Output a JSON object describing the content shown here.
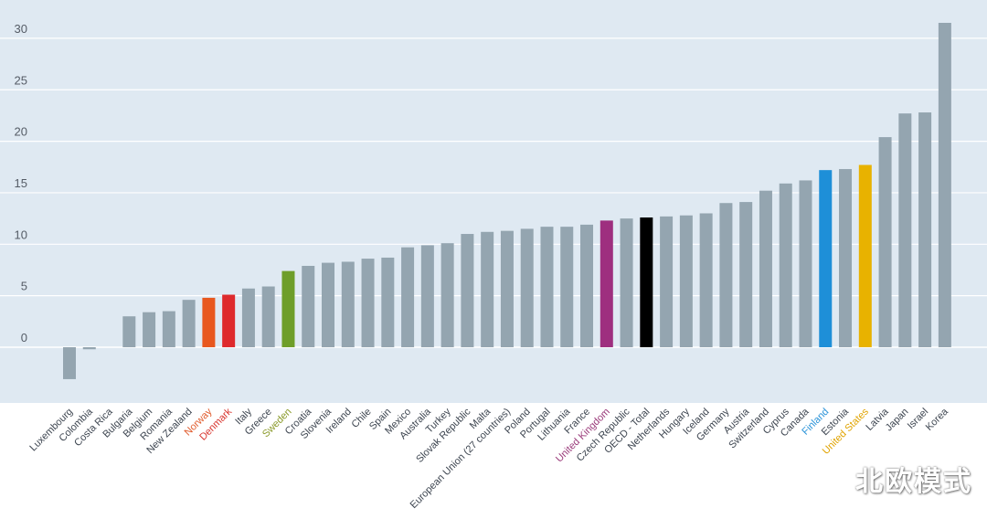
{
  "chart_data": {
    "type": "bar",
    "title": "",
    "xlabel": "",
    "ylabel": "",
    "ylim": [
      -5.5,
      33
    ],
    "yticks": [
      0,
      5,
      10,
      15,
      20,
      25,
      30
    ],
    "grid": true,
    "categories": [
      "Luxembourg",
      "Colombia",
      "Costa Rica",
      "Bulgaria",
      "Belgium",
      "Romania",
      "New Zealand",
      "Norway",
      "Denmark",
      "Italy",
      "Greece",
      "Sweden",
      "Croatia",
      "Slovenia",
      "Ireland",
      "Chile",
      "Spain",
      "Mexico",
      "Australia",
      "Turkey",
      "Slovak Republic",
      "Malta",
      "European Union (27 countries)",
      "Poland",
      "Portugal",
      "Lithuania",
      "France",
      "United Kingdom",
      "Czech Republic",
      "OECD - Total",
      "Netherlands",
      "Hungary",
      "Iceland",
      "Germany",
      "Austria",
      "Switzerland",
      "Cyprus",
      "Canada",
      "Finland",
      "Estonia",
      "United States",
      "Latvia",
      "Japan",
      "Israel",
      "Korea"
    ],
    "values": [
      -3.1,
      -0.2,
      null,
      3.0,
      3.4,
      3.5,
      4.6,
      4.8,
      5.1,
      5.7,
      5.9,
      7.4,
      7.9,
      8.2,
      8.3,
      8.6,
      8.7,
      9.7,
      9.9,
      10.1,
      11.0,
      11.2,
      11.3,
      11.5,
      11.7,
      11.7,
      11.9,
      12.3,
      12.5,
      12.6,
      12.7,
      12.8,
      13.0,
      14.0,
      14.1,
      15.2,
      15.9,
      16.2,
      17.2,
      17.3,
      17.7,
      20.4,
      22.7,
      22.8,
      31.5
    ],
    "colors": {
      "default": "#94a5b0",
      "Norway": "#e8581f",
      "Denmark": "#de2a2d",
      "Sweden": "#6e9e2a",
      "United Kingdom": "#9e2f7f",
      "OECD - Total": "#000000",
      "Finland": "#1e8fd8",
      "United States": "#e8b200"
    },
    "label_colors": {
      "default": "#3d4550",
      "Norway": "#e05a2b",
      "Denmark": "#d8352e",
      "Sweden": "#8a9a2a",
      "United Kingdom": "#9a3a7a",
      "Finland": "#2a93d8",
      "United States": "#e0a300"
    },
    "plot_background": "#dfe9f2"
  },
  "watermark": "北欧模式"
}
